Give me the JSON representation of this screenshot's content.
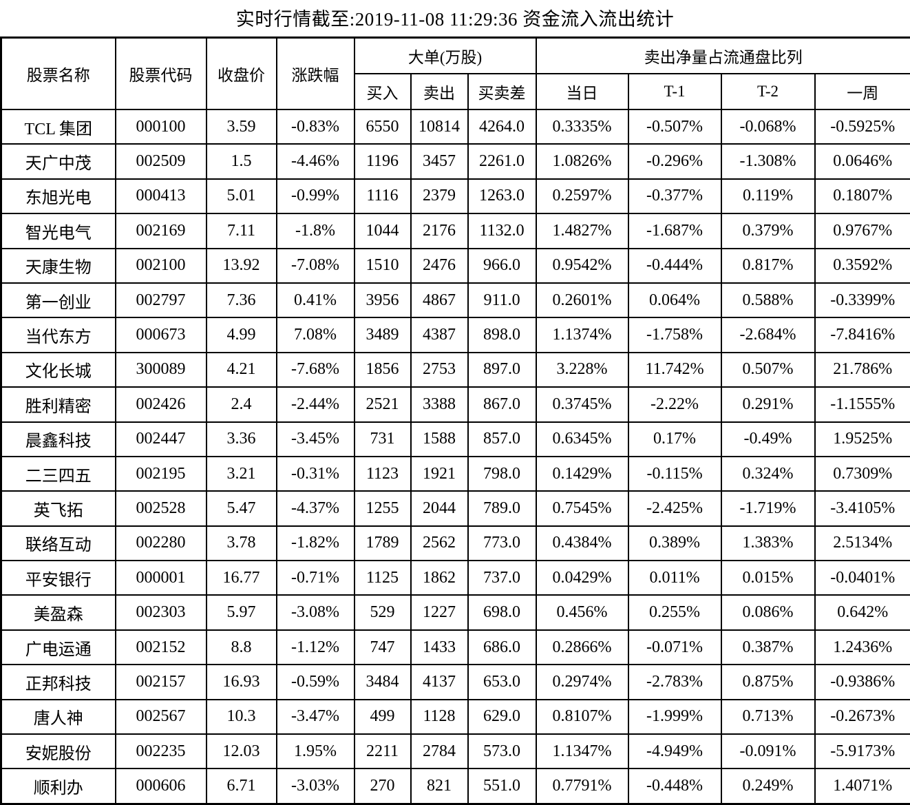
{
  "title": "实时行情截至:2019-11-08 11:29:36 资金流入流出统计",
  "colors": {
    "link_blue": "#2e6095",
    "text_black": "#000000",
    "border_black": "#000000",
    "background": "#ffffff"
  },
  "table": {
    "headers": {
      "name": "股票名称",
      "code": "股票代码",
      "close": "收盘价",
      "change": "涨跌幅",
      "big_order_group": "大单(万股)",
      "buy": "买入",
      "sell": "卖出",
      "diff": "买卖差",
      "ratio_group": "卖出净量占流通盘比列",
      "today": "当日",
      "t1": "T-1",
      "t2": "T-2",
      "week": "一周"
    },
    "rows": [
      {
        "name": "TCL 集团",
        "code": "000100",
        "close": "3.59",
        "change": "-0.83%",
        "buy": "6550",
        "sell": "10814",
        "diff": "4264.0",
        "today": "0.3335%",
        "t1": "-0.507%",
        "t2": "-0.068%",
        "week": "-0.5925%"
      },
      {
        "name": "天广中茂",
        "code": "002509",
        "close": "1.5",
        "change": "-4.46%",
        "buy": "1196",
        "sell": "3457",
        "diff": "2261.0",
        "today": "1.0826%",
        "t1": "-0.296%",
        "t2": "-1.308%",
        "week": "0.0646%"
      },
      {
        "name": "东旭光电",
        "code": "000413",
        "close": "5.01",
        "change": "-0.99%",
        "buy": "1116",
        "sell": "2379",
        "diff": "1263.0",
        "today": "0.2597%",
        "t1": "-0.377%",
        "t2": "0.119%",
        "week": "0.1807%"
      },
      {
        "name": "智光电气",
        "code": "002169",
        "close": "7.11",
        "change": "-1.8%",
        "buy": "1044",
        "sell": "2176",
        "diff": "1132.0",
        "today": "1.4827%",
        "t1": "-1.687%",
        "t2": "0.379%",
        "week": "0.9767%"
      },
      {
        "name": "天康生物",
        "code": "002100",
        "close": "13.92",
        "change": "-7.08%",
        "buy": "1510",
        "sell": "2476",
        "diff": "966.0",
        "today": "0.9542%",
        "t1": "-0.444%",
        "t2": "0.817%",
        "week": "0.3592%"
      },
      {
        "name": "第一创业",
        "code": "002797",
        "close": "7.36",
        "change": "0.41%",
        "buy": "3956",
        "sell": "4867",
        "diff": "911.0",
        "today": "0.2601%",
        "t1": "0.064%",
        "t2": "0.588%",
        "week": "-0.3399%"
      },
      {
        "name": "当代东方",
        "code": "000673",
        "close": "4.99",
        "change": "7.08%",
        "buy": "3489",
        "sell": "4387",
        "diff": "898.0",
        "today": "1.1374%",
        "t1": "-1.758%",
        "t2": "-2.684%",
        "week": "-7.8416%"
      },
      {
        "name": "文化长城",
        "code": "300089",
        "close": "4.21",
        "change": "-7.68%",
        "buy": "1856",
        "sell": "2753",
        "diff": "897.0",
        "today": "3.228%",
        "t1": "11.742%",
        "t2": "0.507%",
        "week": "21.786%"
      },
      {
        "name": "胜利精密",
        "code": "002426",
        "close": "2.4",
        "change": "-2.44%",
        "buy": "2521",
        "sell": "3388",
        "diff": "867.0",
        "today": "0.3745%",
        "t1": "-2.22%",
        "t2": "0.291%",
        "week": "-1.1555%"
      },
      {
        "name": "晨鑫科技",
        "code": "002447",
        "close": "3.36",
        "change": "-3.45%",
        "buy": "731",
        "sell": "1588",
        "diff": "857.0",
        "today": "0.6345%",
        "t1": "0.17%",
        "t2": "-0.49%",
        "week": "1.9525%"
      },
      {
        "name": "二三四五",
        "code": "002195",
        "close": "3.21",
        "change": "-0.31%",
        "buy": "1123",
        "sell": "1921",
        "diff": "798.0",
        "today": "0.1429%",
        "t1": "-0.115%",
        "t2": "0.324%",
        "week": "0.7309%"
      },
      {
        "name": "英飞拓",
        "code": "002528",
        "close": "5.47",
        "change": "-4.37%",
        "buy": "1255",
        "sell": "2044",
        "diff": "789.0",
        "today": "0.7545%",
        "t1": "-2.425%",
        "t2": "-1.719%",
        "week": "-3.4105%"
      },
      {
        "name": "联络互动",
        "code": "002280",
        "close": "3.78",
        "change": "-1.82%",
        "buy": "1789",
        "sell": "2562",
        "diff": "773.0",
        "today": "0.4384%",
        "t1": "0.389%",
        "t2": "1.383%",
        "week": "2.5134%"
      },
      {
        "name": "平安银行",
        "code": "000001",
        "close": "16.77",
        "change": "-0.71%",
        "buy": "1125",
        "sell": "1862",
        "diff": "737.0",
        "today": "0.0429%",
        "t1": "0.011%",
        "t2": "0.015%",
        "week": "-0.0401%"
      },
      {
        "name": "美盈森",
        "code": "002303",
        "close": "5.97",
        "change": "-3.08%",
        "buy": "529",
        "sell": "1227",
        "diff": "698.0",
        "today": "0.456%",
        "t1": "0.255%",
        "t2": "0.086%",
        "week": "0.642%"
      },
      {
        "name": "广电运通",
        "code": "002152",
        "close": "8.8",
        "change": "-1.12%",
        "buy": "747",
        "sell": "1433",
        "diff": "686.0",
        "today": "0.2866%",
        "t1": "-0.071%",
        "t2": "0.387%",
        "week": "1.2436%"
      },
      {
        "name": "正邦科技",
        "code": "002157",
        "close": "16.93",
        "change": "-0.59%",
        "buy": "3484",
        "sell": "4137",
        "diff": "653.0",
        "today": "0.2974%",
        "t1": "-2.783%",
        "t2": "0.875%",
        "week": "-0.9386%"
      },
      {
        "name": "唐人神",
        "code": "002567",
        "close": "10.3",
        "change": "-3.47%",
        "buy": "499",
        "sell": "1128",
        "diff": "629.0",
        "today": "0.8107%",
        "t1": "-1.999%",
        "t2": "0.713%",
        "week": "-0.2673%"
      },
      {
        "name": "安妮股份",
        "code": "002235",
        "close": "12.03",
        "change": "1.95%",
        "buy": "2211",
        "sell": "2784",
        "diff": "573.0",
        "today": "1.1347%",
        "t1": "-4.949%",
        "t2": "-0.091%",
        "week": "-5.9173%"
      },
      {
        "name": "顺利办",
        "code": "000606",
        "close": "6.71",
        "change": "-3.03%",
        "buy": "270",
        "sell": "821",
        "diff": "551.0",
        "today": "0.7791%",
        "t1": "-0.448%",
        "t2": "0.249%",
        "week": "1.4071%"
      }
    ]
  }
}
